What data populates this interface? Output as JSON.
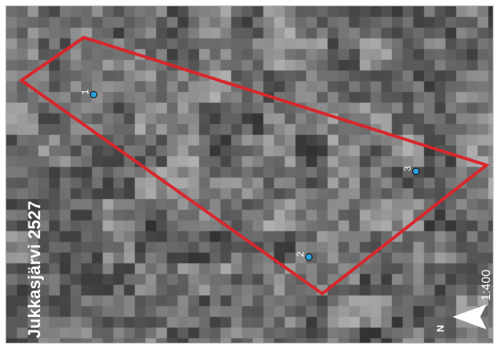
{
  "map": {
    "title": "Jukkasjärvi 2527",
    "scale": "1:400",
    "north_label": "N",
    "boundary_color": "#d9262b",
    "point_color": "#29a3e0",
    "points": [
      {
        "label": "1"
      },
      {
        "label": "2"
      },
      {
        "label": "3"
      }
    ]
  }
}
